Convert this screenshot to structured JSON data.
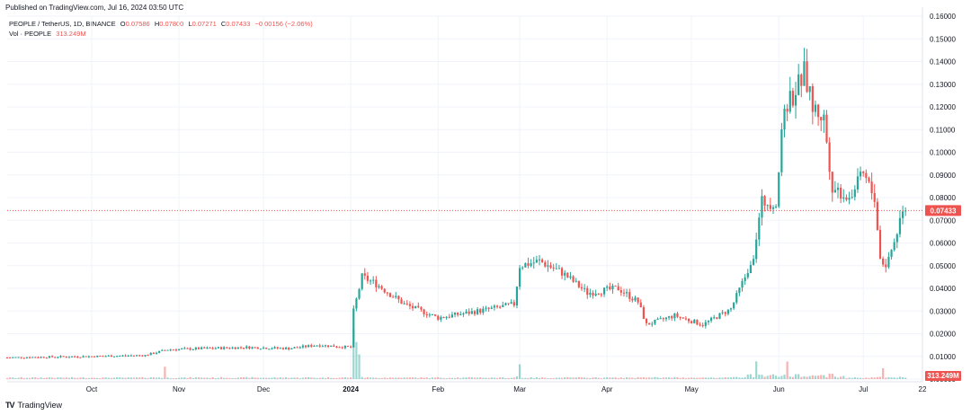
{
  "header": {
    "published": "Published on TradingView.com, Jul 16, 2024 03:50 UTC"
  },
  "legend": {
    "symbol": "PEOPLE / TetherUS, 1D, BINANCE",
    "open_label": "O",
    "open": "0.07586",
    "high_label": "H",
    "high": "0.07800",
    "low_label": "L",
    "low": "0.07271",
    "close_label": "C",
    "close": "0.07433",
    "change": "−0.00156 (−2.06%)",
    "vol_label": "Vol · PEOPLE",
    "vol_value": "313.249M"
  },
  "footer": {
    "brand": "TradingView",
    "logo_text": "TV"
  },
  "colors": {
    "up": "#26a69a",
    "down": "#ef5350",
    "grid": "#f0f3fa",
    "price_line": "#ef5350"
  },
  "chart_data": {
    "type": "candlestick",
    "title": "PEOPLE / TetherUS, 1D, BINANCE",
    "y_ticks": [
      "0.00000",
      "0.01000",
      "0.02000",
      "0.03000",
      "0.04000",
      "0.05000",
      "0.06000",
      "0.07000",
      "0.08000",
      "0.09000",
      "0.10000",
      "0.11000",
      "0.12000",
      "0.13000",
      "0.14000",
      "0.15000",
      "0.16000"
    ],
    "x_ticks": [
      {
        "label": "Oct",
        "date": "2023-10-01"
      },
      {
        "label": "Nov",
        "date": "2023-11-01"
      },
      {
        "label": "Dec",
        "date": "2023-12-01"
      },
      {
        "label": "2024",
        "date": "2024-01-01"
      },
      {
        "label": "Feb",
        "date": "2024-02-01"
      },
      {
        "label": "Mar",
        "date": "2024-03-01"
      },
      {
        "label": "Apr",
        "date": "2024-04-01"
      },
      {
        "label": "May",
        "date": "2024-05-01"
      },
      {
        "label": "Jun",
        "date": "2024-06-01"
      },
      {
        "label": "Jul",
        "date": "2024-07-01"
      },
      {
        "label": "22",
        "date": "2024-07-22"
      }
    ],
    "ylim": [
      0,
      0.16
    ],
    "x_start": "2023-09-01",
    "x_end": "2024-07-22",
    "last_price": "0.07433",
    "last_volume": "313.249M",
    "close_anchors": [
      [
        "2023-09-01",
        0.0095
      ],
      [
        "2023-09-30",
        0.01
      ],
      [
        "2023-10-20",
        0.0105
      ],
      [
        "2023-10-28",
        0.013
      ],
      [
        "2023-11-10",
        0.0135
      ],
      [
        "2023-11-25",
        0.014
      ],
      [
        "2023-12-10",
        0.0135
      ],
      [
        "2023-12-20",
        0.015
      ],
      [
        "2024-01-01",
        0.014
      ],
      [
        "2024-01-02",
        0.03
      ],
      [
        "2024-01-05",
        0.045
      ],
      [
        "2024-01-10",
        0.042
      ],
      [
        "2024-01-20",
        0.033
      ],
      [
        "2024-02-01",
        0.027
      ],
      [
        "2024-02-20",
        0.031
      ],
      [
        "2024-02-28",
        0.033
      ],
      [
        "2024-03-01",
        0.05
      ],
      [
        "2024-03-08",
        0.052
      ],
      [
        "2024-03-16",
        0.047
      ],
      [
        "2024-03-25",
        0.038
      ],
      [
        "2024-04-05",
        0.04
      ],
      [
        "2024-04-12",
        0.034
      ],
      [
        "2024-04-15",
        0.024
      ],
      [
        "2024-04-25",
        0.028
      ],
      [
        "2024-05-05",
        0.024
      ],
      [
        "2024-05-15",
        0.031
      ],
      [
        "2024-05-20",
        0.045
      ],
      [
        "2024-05-23",
        0.055
      ],
      [
        "2024-05-26",
        0.078
      ],
      [
        "2024-05-31",
        0.078
      ],
      [
        "2024-06-03",
        0.12
      ],
      [
        "2024-06-06",
        0.125
      ],
      [
        "2024-06-10",
        0.135
      ],
      [
        "2024-06-13",
        0.12
      ],
      [
        "2024-06-17",
        0.115
      ],
      [
        "2024-06-20",
        0.085
      ],
      [
        "2024-06-26",
        0.08
      ],
      [
        "2024-07-01",
        0.09
      ],
      [
        "2024-07-05",
        0.08
      ],
      [
        "2024-07-07",
        0.053
      ],
      [
        "2024-07-09",
        0.05
      ],
      [
        "2024-07-11",
        0.057
      ],
      [
        "2024-07-13",
        0.065
      ],
      [
        "2024-07-15",
        0.076
      ],
      [
        "2024-07-16",
        0.07433
      ]
    ],
    "volume_spikes": [
      [
        "2023-10-27",
        0.25
      ],
      [
        "2024-01-02",
        1.0
      ],
      [
        "2024-01-03",
        0.75
      ],
      [
        "2024-01-04",
        0.5
      ],
      [
        "2024-03-01",
        0.3
      ],
      [
        "2024-05-24",
        0.3
      ],
      [
        "2024-06-04",
        0.35
      ],
      [
        "2024-07-08",
        0.22
      ]
    ]
  }
}
